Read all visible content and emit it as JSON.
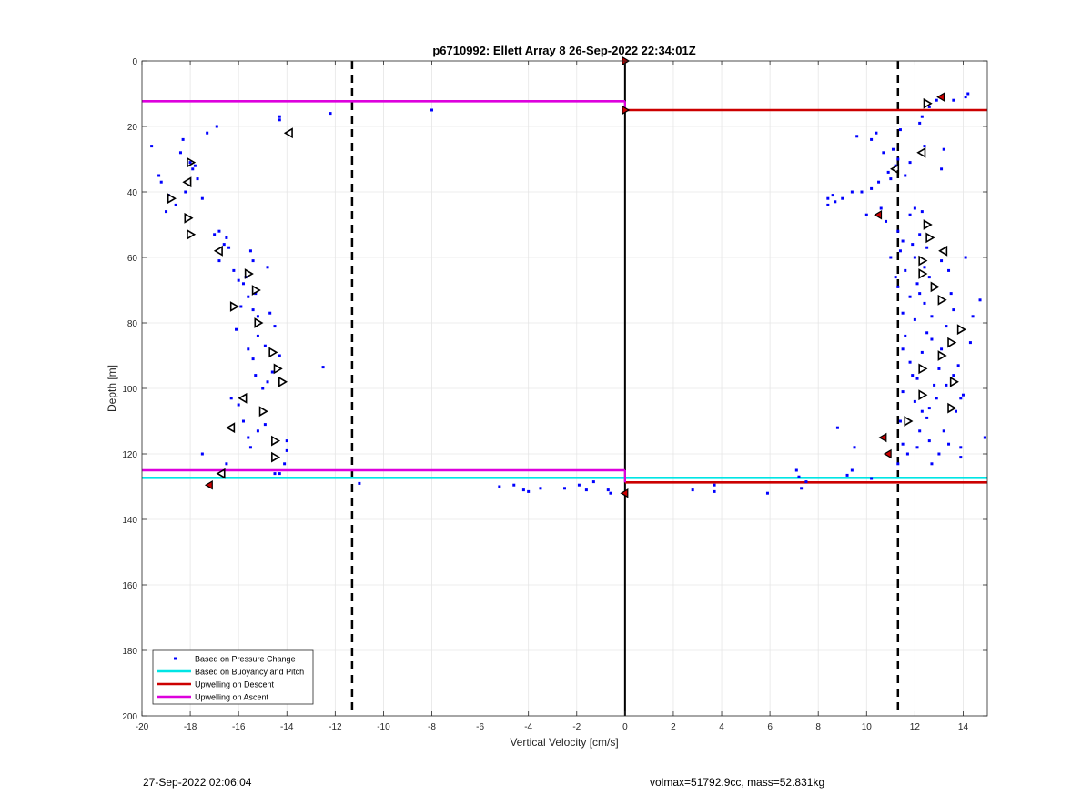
{
  "chart_data": {
    "type": "scatter",
    "title": "p6710992: Ellett Array 8 26-Sep-2022 22:34:01Z",
    "xlabel": "Vertical Velocity [cm/s]",
    "ylabel": "Depth [m]",
    "xlim": [
      -20,
      15
    ],
    "ylim": [
      0,
      200
    ],
    "y_reversed": true,
    "grid": true,
    "xticks": [
      -20,
      -18,
      -16,
      -14,
      -12,
      -10,
      -8,
      -6,
      -4,
      -2,
      0,
      2,
      4,
      6,
      8,
      10,
      12,
      14
    ],
    "yticks": [
      0,
      20,
      40,
      60,
      80,
      100,
      120,
      140,
      160,
      180,
      200
    ],
    "legend": {
      "placement": "bottom-left",
      "entries": [
        {
          "label": "Based on Pressure Change",
          "color": "#0000ff",
          "marker": "dot"
        },
        {
          "label": "Based on Buoyancy and Pitch",
          "color": "#00e5e5",
          "marker": "line"
        },
        {
          "label": "Upwelling on Descent",
          "color": "#cc0000",
          "marker": "line"
        },
        {
          "label": "Upwelling on Ascent",
          "color": "#dd00dd",
          "marker": "line"
        }
      ]
    },
    "vertical_lines": [
      {
        "x": -11.3,
        "style": "dashed",
        "color": "#000000"
      },
      {
        "x": 11.3,
        "style": "dashed",
        "color": "#000000"
      },
      {
        "x": 0,
        "style": "solid",
        "color": "#000000"
      }
    ],
    "upwelling_lines": [
      {
        "series": "Upwelling on Ascent",
        "x1": -20,
        "x2": 0,
        "y": 12.3,
        "color": "#dd00dd"
      },
      {
        "series": "Upwelling on Ascent",
        "x1": -20,
        "x2": 0,
        "y": 125,
        "color": "#dd00dd"
      },
      {
        "series": "Based on Buoyancy and Pitch",
        "x1": -20,
        "x2": 0,
        "y": 127.3,
        "color": "#00e5e5"
      },
      {
        "series": "Based on Buoyancy and Pitch",
        "x1": 0,
        "x2": 15,
        "y": 127.3,
        "color": "#00e5e5"
      },
      {
        "series": "Upwelling on Descent",
        "x1": 0,
        "x2": 15,
        "y": 15,
        "color": "#cc0000"
      },
      {
        "series": "Upwelling on Descent",
        "x1": 0,
        "x2": 15,
        "y": 128.7,
        "color": "#cc0000"
      }
    ],
    "series": [
      {
        "name": "Based on Pressure Change",
        "color": "#0000ff",
        "points": [
          [
            -19.6,
            26
          ],
          [
            -19.3,
            35
          ],
          [
            -19.2,
            37
          ],
          [
            -19.0,
            46
          ],
          [
            -18.9,
            41
          ],
          [
            -18.6,
            44
          ],
          [
            -18.4,
            28
          ],
          [
            -18.3,
            24
          ],
          [
            -18.2,
            40
          ],
          [
            -18.0,
            31
          ],
          [
            -17.9,
            33
          ],
          [
            -17.8,
            32
          ],
          [
            -17.7,
            36
          ],
          [
            -17.5,
            42
          ],
          [
            -17.3,
            22
          ],
          [
            -16.9,
            20
          ],
          [
            -17.0,
            53
          ],
          [
            -16.8,
            52
          ],
          [
            -16.6,
            56
          ],
          [
            -16.8,
            61
          ],
          [
            -16.5,
            54
          ],
          [
            -16.4,
            57
          ],
          [
            -16.2,
            64
          ],
          [
            -16.0,
            67
          ],
          [
            -15.8,
            68
          ],
          [
            -15.6,
            72
          ],
          [
            -15.4,
            76
          ],
          [
            -15.9,
            75
          ],
          [
            -16.1,
            82
          ],
          [
            -15.7,
            66
          ],
          [
            -15.5,
            58
          ],
          [
            -15.4,
            61
          ],
          [
            -15.3,
            71
          ],
          [
            -15.2,
            78
          ],
          [
            -14.8,
            63
          ],
          [
            -14.7,
            77
          ],
          [
            -14.5,
            81
          ],
          [
            -15.2,
            84
          ],
          [
            -15.6,
            88
          ],
          [
            -15.4,
            91
          ],
          [
            -14.9,
            87
          ],
          [
            -14.6,
            95
          ],
          [
            -14.3,
            90
          ],
          [
            -14.8,
            98
          ],
          [
            -15.3,
            96
          ],
          [
            -15.0,
            100
          ],
          [
            -16.3,
            103
          ],
          [
            -16.0,
            105
          ],
          [
            -15.8,
            110
          ],
          [
            -15.6,
            115
          ],
          [
            -15.2,
            113
          ],
          [
            -14.9,
            111
          ],
          [
            -15.5,
            118
          ],
          [
            -16.5,
            123
          ],
          [
            -17.5,
            120
          ],
          [
            -14.0,
            116
          ],
          [
            -14.0,
            119
          ],
          [
            -14.1,
            123
          ],
          [
            -14.5,
            126
          ],
          [
            -14.3,
            126
          ],
          [
            -14.3,
            18
          ],
          [
            -14.3,
            17
          ],
          [
            -12.2,
            16
          ],
          [
            -12.5,
            93.5
          ],
          [
            -11.0,
            129
          ],
          [
            -8.0,
            15
          ],
          [
            -5.2,
            130
          ],
          [
            -4.6,
            129.5
          ],
          [
            -4.2,
            131
          ],
          [
            -4.0,
            131.5
          ],
          [
            -3.5,
            130.5
          ],
          [
            -2.5,
            130.5
          ],
          [
            -1.9,
            129.5
          ],
          [
            -1.6,
            131
          ],
          [
            -1.3,
            128.5
          ],
          [
            -0.7,
            131
          ],
          [
            -0.6,
            132
          ],
          [
            2.8,
            131
          ],
          [
            3.7,
            129.5
          ],
          [
            3.7,
            131.5
          ],
          [
            5.9,
            132
          ],
          [
            7.1,
            125
          ],
          [
            7.2,
            127
          ],
          [
            7.3,
            130.5
          ],
          [
            7.5,
            128.5
          ],
          [
            8.8,
            112
          ],
          [
            9.2,
            126.5
          ],
          [
            9.4,
            125
          ],
          [
            9.5,
            118
          ],
          [
            10.2,
            127.5
          ],
          [
            8.4,
            42
          ],
          [
            8.4,
            44
          ],
          [
            8.6,
            41
          ],
          [
            8.7,
            43
          ],
          [
            9.0,
            42
          ],
          [
            9.4,
            40
          ],
          [
            9.6,
            23
          ],
          [
            10.2,
            24
          ],
          [
            10.2,
            39
          ],
          [
            10.4,
            22
          ],
          [
            10.5,
            37
          ],
          [
            10.6,
            45
          ],
          [
            10.8,
            49
          ],
          [
            10.9,
            34
          ],
          [
            11.0,
            36
          ],
          [
            11.2,
            32
          ],
          [
            11.3,
            30
          ],
          [
            11.3,
            52
          ],
          [
            11.4,
            21
          ],
          [
            11.5,
            55
          ],
          [
            11.6,
            35
          ],
          [
            11.4,
            58
          ],
          [
            11.6,
            64
          ],
          [
            11.8,
            31
          ],
          [
            11.9,
            56
          ],
          [
            12.0,
            60
          ],
          [
            12.1,
            68
          ],
          [
            12.3,
            17
          ],
          [
            12.2,
            19
          ],
          [
            12.3,
            46
          ],
          [
            12.4,
            26
          ],
          [
            12.2,
            53
          ],
          [
            12.5,
            57
          ],
          [
            12.4,
            63
          ],
          [
            12.6,
            66
          ],
          [
            12.2,
            71
          ],
          [
            12.4,
            74
          ],
          [
            12.7,
            78
          ],
          [
            12.5,
            83
          ],
          [
            12.0,
            79
          ],
          [
            11.6,
            84
          ],
          [
            11.5,
            77
          ],
          [
            11.5,
            88
          ],
          [
            11.8,
            92
          ],
          [
            12.1,
            97
          ],
          [
            12.0,
            104
          ],
          [
            12.3,
            107
          ],
          [
            12.6,
            106
          ],
          [
            12.5,
            109
          ],
          [
            12.9,
            103
          ],
          [
            12.8,
            99
          ],
          [
            13.1,
            88
          ],
          [
            13.3,
            81
          ],
          [
            13.1,
            61
          ],
          [
            13.2,
            27
          ],
          [
            13.1,
            33
          ],
          [
            13.4,
            64
          ],
          [
            13.5,
            71
          ],
          [
            13.6,
            76
          ],
          [
            13.8,
            93
          ],
          [
            13.6,
            96
          ],
          [
            13.9,
            103
          ],
          [
            13.2,
            113
          ],
          [
            13.4,
            117
          ],
          [
            13.9,
            118
          ],
          [
            13.9,
            121
          ],
          [
            13.7,
            107
          ],
          [
            14.0,
            102
          ],
          [
            14.1,
            60
          ],
          [
            14.1,
            11
          ],
          [
            14.2,
            10
          ],
          [
            14.3,
            86
          ],
          [
            14.4,
            78
          ],
          [
            14.7,
            73
          ],
          [
            14.9,
            115
          ],
          [
            12.9,
            12
          ],
          [
            12.6,
            14
          ],
          [
            13.6,
            12
          ],
          [
            11.5,
            117
          ],
          [
            11.3,
            123
          ],
          [
            11.7,
            120
          ],
          [
            12.1,
            118
          ],
          [
            11.8,
            47
          ],
          [
            12.0,
            45
          ],
          [
            11.3,
            69
          ],
          [
            11.8,
            72
          ],
          [
            11.0,
            60
          ],
          [
            11.2,
            66
          ],
          [
            11.5,
            101
          ],
          [
            11.9,
            96
          ],
          [
            12.3,
            89
          ],
          [
            12.7,
            85
          ],
          [
            13.0,
            94
          ],
          [
            13.3,
            99
          ],
          [
            11.4,
            110
          ],
          [
            12.2,
            113
          ],
          [
            12.6,
            116
          ],
          [
            13.0,
            120
          ],
          [
            12.7,
            123
          ],
          [
            9.8,
            40
          ],
          [
            10.0,
            47
          ],
          [
            10.7,
            28
          ],
          [
            11.1,
            27
          ]
        ]
      },
      {
        "name": "",
        "color": "#000000",
        "marker": "open-triangle",
        "points": [
          {
            "x": -13.9,
            "y": 22,
            "dir": "left"
          },
          {
            "x": -18.0,
            "y": 31,
            "dir": "right"
          },
          {
            "x": -18.1,
            "y": 37,
            "dir": "left"
          },
          {
            "x": -18.8,
            "y": 42,
            "dir": "right"
          },
          {
            "x": -18.1,
            "y": 48,
            "dir": "right"
          },
          {
            "x": -18.0,
            "y": 53,
            "dir": "right"
          },
          {
            "x": -16.8,
            "y": 58,
            "dir": "left"
          },
          {
            "x": -15.6,
            "y": 65,
            "dir": "right"
          },
          {
            "x": -15.3,
            "y": 70,
            "dir": "right"
          },
          {
            "x": -16.2,
            "y": 75,
            "dir": "right"
          },
          {
            "x": -15.2,
            "y": 80,
            "dir": "right"
          },
          {
            "x": -14.6,
            "y": 89,
            "dir": "right"
          },
          {
            "x": -14.4,
            "y": 94,
            "dir": "right"
          },
          {
            "x": -14.2,
            "y": 98,
            "dir": "right"
          },
          {
            "x": -15.8,
            "y": 103,
            "dir": "left"
          },
          {
            "x": -15.0,
            "y": 107,
            "dir": "right"
          },
          {
            "x": -16.3,
            "y": 112,
            "dir": "left"
          },
          {
            "x": -14.5,
            "y": 116,
            "dir": "right"
          },
          {
            "x": -14.5,
            "y": 121,
            "dir": "right"
          },
          {
            "x": -16.7,
            "y": 126,
            "dir": "left"
          },
          {
            "x": 12.5,
            "y": 13,
            "dir": "right"
          },
          {
            "x": 12.3,
            "y": 28,
            "dir": "left"
          },
          {
            "x": 11.2,
            "y": 33,
            "dir": "left"
          },
          {
            "x": 12.5,
            "y": 50,
            "dir": "right"
          },
          {
            "x": 12.6,
            "y": 54,
            "dir": "right"
          },
          {
            "x": 13.2,
            "y": 58,
            "dir": "left"
          },
          {
            "x": 12.3,
            "y": 61,
            "dir": "right"
          },
          {
            "x": 12.3,
            "y": 65,
            "dir": "right"
          },
          {
            "x": 12.8,
            "y": 69,
            "dir": "right"
          },
          {
            "x": 13.1,
            "y": 73,
            "dir": "right"
          },
          {
            "x": 13.9,
            "y": 82,
            "dir": "right"
          },
          {
            "x": 13.5,
            "y": 86,
            "dir": "right"
          },
          {
            "x": 13.1,
            "y": 90,
            "dir": "right"
          },
          {
            "x": 12.3,
            "y": 94,
            "dir": "right"
          },
          {
            "x": 13.6,
            "y": 98,
            "dir": "right"
          },
          {
            "x": 12.3,
            "y": 102,
            "dir": "right"
          },
          {
            "x": 13.5,
            "y": 106,
            "dir": "right"
          },
          {
            "x": 11.7,
            "y": 110,
            "dir": "right"
          }
        ]
      },
      {
        "name": "",
        "color": "#cc0000",
        "marker": "filled-triangle",
        "points": [
          {
            "x": 0,
            "y": 0,
            "dir": "right"
          },
          {
            "x": 0,
            "y": 15,
            "dir": "right"
          },
          {
            "x": 0,
            "y": 132,
            "dir": "left"
          },
          {
            "x": 13.1,
            "y": 11,
            "dir": "left"
          },
          {
            "x": 10.5,
            "y": 47,
            "dir": "left"
          },
          {
            "x": 10.7,
            "y": 115,
            "dir": "left"
          },
          {
            "x": 10.9,
            "y": 120,
            "dir": "left"
          },
          {
            "x": -17.2,
            "y": 129.5,
            "dir": "left"
          }
        ]
      }
    ]
  },
  "footer": {
    "left": "27-Sep-2022 02:06:04",
    "right": "volmax=51792.9cc, mass=52.831kg"
  }
}
